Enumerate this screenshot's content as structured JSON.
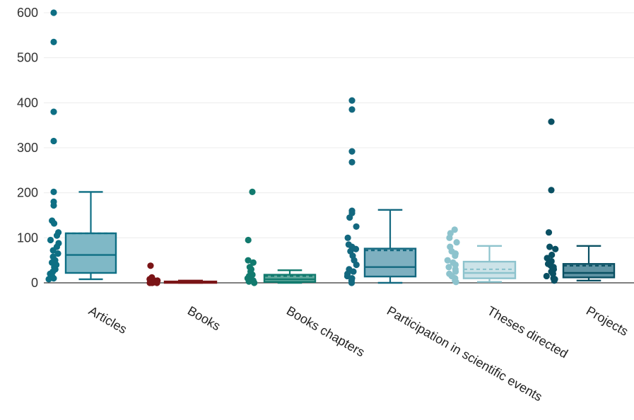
{
  "chart_data": {
    "type": "box",
    "title": "",
    "xlabel": "",
    "ylabel": "",
    "ylim": [
      0,
      600
    ],
    "yticks": [
      "0",
      "100",
      "200",
      "300",
      "400",
      "500",
      "600"
    ],
    "grid": true,
    "legend": "none",
    "categories": [
      "Articles",
      "Books",
      "Books chapters",
      "Participation in scientific events",
      "Theses directed",
      "Projects"
    ],
    "series": [
      {
        "category": "Articles",
        "color": "#0e6f84",
        "box_fill": "#7fb8c6",
        "stats": {
          "min": 8,
          "q1": 22,
          "median": 62,
          "mean": 110,
          "q3": 110,
          "max": 202
        },
        "points": [
          600,
          535,
          380,
          315,
          202,
          180,
          172,
          138,
          132,
          112,
          105,
          95,
          88,
          80,
          72,
          65,
          58,
          50,
          45,
          40,
          35,
          30,
          25,
          20,
          15,
          10,
          8
        ]
      },
      {
        "category": "Books",
        "color": "#7a1416",
        "box_fill": "#8c2a2c",
        "stats": {
          "min": 0,
          "q1": 0,
          "median": 1,
          "mean": 2,
          "q3": 3,
          "max": 5
        },
        "points": [
          38,
          12,
          8,
          6,
          5,
          4,
          3,
          2,
          1,
          0,
          0,
          0
        ]
      },
      {
        "category": "Books chapters",
        "color": "#127a6e",
        "box_fill": "#63aa9f",
        "stats": {
          "min": 0,
          "q1": 2,
          "median": 8,
          "mean": 15,
          "q3": 18,
          "max": 28
        },
        "points": [
          202,
          95,
          50,
          45,
          35,
          30,
          25,
          20,
          18,
          15,
          10,
          8,
          5,
          3,
          0
        ]
      },
      {
        "category": "Participation in scientific events",
        "color": "#13687f",
        "box_fill": "#7eb0c0",
        "stats": {
          "min": 0,
          "q1": 14,
          "median": 35,
          "mean": 72,
          "q3": 76,
          "max": 162
        },
        "points": [
          405,
          385,
          292,
          268,
          160,
          155,
          145,
          125,
          100,
          85,
          80,
          75,
          70,
          60,
          50,
          40,
          30,
          25,
          20,
          15,
          10,
          5,
          0
        ]
      },
      {
        "category": "Theses directed",
        "color": "#8dc3cd",
        "box_fill": "#cce3e8",
        "stats": {
          "min": 2,
          "q1": 10,
          "median": 22,
          "mean": 30,
          "q3": 47,
          "max": 82
        },
        "points": [
          118,
          110,
          100,
          90,
          80,
          70,
          65,
          60,
          50,
          45,
          40,
          35,
          30,
          25,
          20,
          15,
          10,
          5,
          2
        ]
      },
      {
        "category": "Projects",
        "color": "#0a5063",
        "box_fill": "#5f93a3",
        "stats": {
          "min": 5,
          "q1": 12,
          "median": 22,
          "mean": 38,
          "q3": 42,
          "max": 82
        },
        "points": [
          358,
          206,
          112,
          80,
          75,
          62,
          55,
          48,
          42,
          38,
          35,
          30,
          25,
          20,
          15,
          10,
          8,
          5
        ]
      }
    ]
  }
}
